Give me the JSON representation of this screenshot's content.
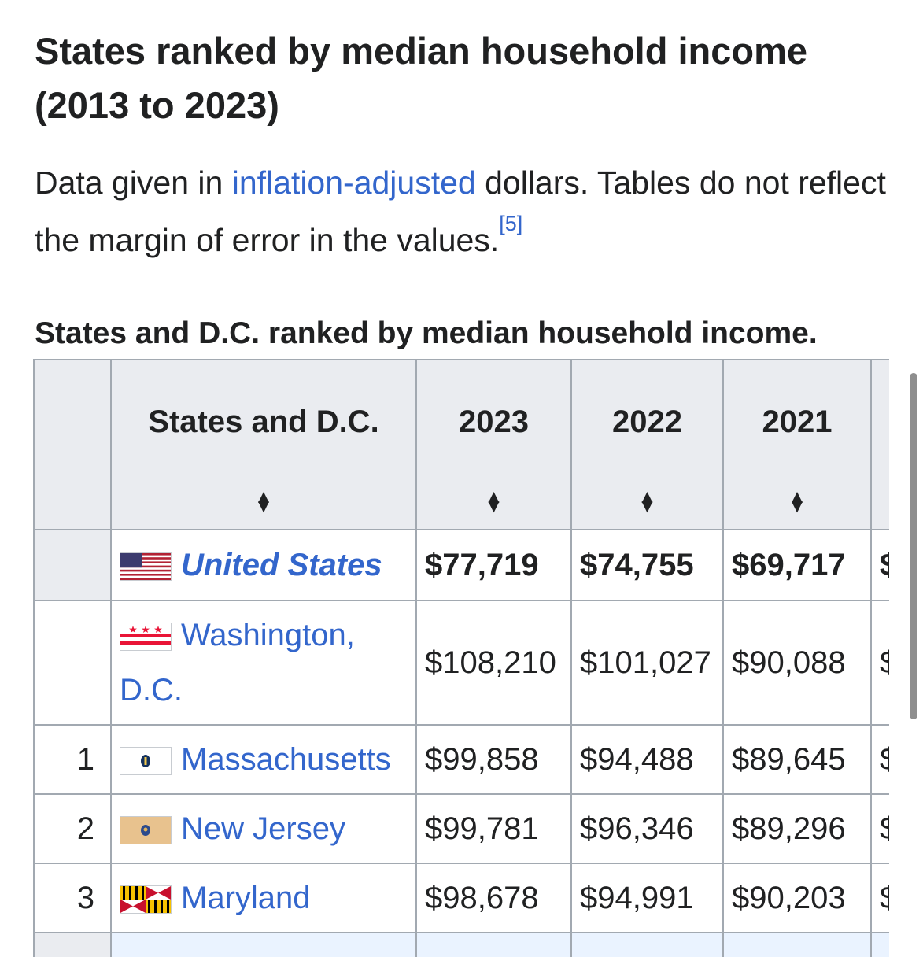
{
  "title": "States ranked by median household income (2013 to 2023)",
  "intro": {
    "before_link": "Data given in ",
    "link": "inflation-adjusted",
    "after_link": " dollars. Tables do not reflect the margin of error in the values.",
    "ref": "[5]"
  },
  "caption": "States and D.C. ranked by median household income.",
  "table": {
    "headers": [
      "States and D.C.",
      "2023",
      "2022",
      "2021"
    ],
    "clipped_glyph": "$",
    "rows": [
      {
        "rank": "",
        "state": "United States",
        "flag": "us-flag",
        "values": [
          "$77,719",
          "$74,755",
          "$69,717"
        ]
      },
      {
        "rank": "",
        "state": "Washington, D.C.",
        "flag": "dc-flag",
        "values": [
          "$108,210",
          "$101,027",
          "$90,088"
        ]
      },
      {
        "rank": "1",
        "state": "Massachusetts",
        "flag": "massachusetts-flag",
        "values": [
          "$99,858",
          "$94,488",
          "$89,645"
        ]
      },
      {
        "rank": "2",
        "state": "New Jersey",
        "flag": "new-jersey-flag",
        "values": [
          "$99,781",
          "$96,346",
          "$89,296"
        ]
      },
      {
        "rank": "3",
        "state": "Maryland",
        "flag": "maryland-flag",
        "values": [
          "$98,678",
          "$94,991",
          "$90,203"
        ]
      }
    ]
  },
  "colors": {
    "link": "#3366cc",
    "header_bg": "#eaecf0",
    "border": "#a2a9b1",
    "text": "#202122"
  }
}
